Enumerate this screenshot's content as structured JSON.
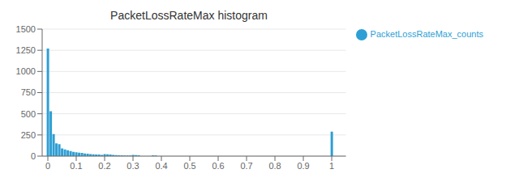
{
  "chart_data": {
    "type": "bar",
    "title": "PacketLossRateMax histogram",
    "x": [
      0.0,
      0.01,
      0.02,
      0.03,
      0.04,
      0.05,
      0.06,
      0.07,
      0.08,
      0.09,
      0.1,
      0.11,
      0.12,
      0.13,
      0.14,
      0.15,
      0.16,
      0.17,
      0.18,
      0.19,
      0.2,
      0.21,
      0.22,
      0.23,
      0.24,
      0.25,
      0.26,
      0.27,
      0.28,
      0.29,
      0.3,
      0.31,
      0.32,
      0.37,
      0.38,
      1.0
    ],
    "series": [
      {
        "name": "PacketLossRateMax_counts",
        "color": "#2e9fd4",
        "values": [
          1270,
          530,
          260,
          150,
          140,
          90,
          80,
          70,
          60,
          50,
          45,
          40,
          38,
          30,
          28,
          25,
          22,
          20,
          18,
          15,
          25,
          22,
          18,
          15,
          12,
          10,
          10,
          8,
          7,
          6,
          15,
          12,
          10,
          10,
          8,
          290
        ]
      }
    ],
    "xlim": [
      -0.02,
      1.05
    ],
    "ylim": [
      0,
      1500
    ],
    "xticks": [
      0,
      0.1,
      0.2,
      0.3,
      0.4,
      0.5,
      0.6,
      0.7,
      0.8,
      0.9,
      1
    ],
    "yticks": [
      0,
      250,
      500,
      750,
      1000,
      1250,
      1500
    ],
    "grid": true,
    "legend": "upper right"
  }
}
